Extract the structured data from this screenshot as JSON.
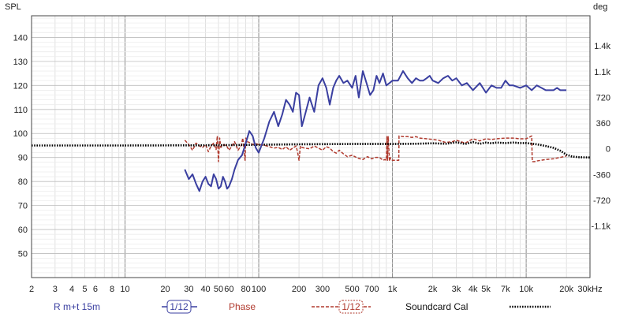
{
  "chart_data": {
    "type": "line",
    "y_left_label": "SPL",
    "y_right_label": "deg",
    "x_scale": "log",
    "x_range": [
      2,
      30000
    ],
    "y_left_range": [
      40,
      149
    ],
    "y_right_range": [
      -1800,
      1860
    ],
    "x_ticks": [
      {
        "v": 2,
        "label": "2"
      },
      {
        "v": 3,
        "label": "3"
      },
      {
        "v": 4,
        "label": "4"
      },
      {
        "v": 5,
        "label": "5"
      },
      {
        "v": 6,
        "label": "6"
      },
      {
        "v": 8,
        "label": "8"
      },
      {
        "v": 10,
        "label": "10"
      },
      {
        "v": 20,
        "label": "20"
      },
      {
        "v": 30,
        "label": "30"
      },
      {
        "v": 40,
        "label": "40"
      },
      {
        "v": 50,
        "label": "50"
      },
      {
        "v": 60,
        "label": "60"
      },
      {
        "v": 80,
        "label": "80"
      },
      {
        "v": 100,
        "label": "100"
      },
      {
        "v": 200,
        "label": "200"
      },
      {
        "v": 300,
        "label": "300"
      },
      {
        "v": 500,
        "label": "500"
      },
      {
        "v": 700,
        "label": "700"
      },
      {
        "v": 1000,
        "label": "1k"
      },
      {
        "v": 2000,
        "label": "2k"
      },
      {
        "v": 3000,
        "label": "3k"
      },
      {
        "v": 4000,
        "label": "4k"
      },
      {
        "v": 5000,
        "label": "5k"
      },
      {
        "v": 7000,
        "label": "7k"
      },
      {
        "v": 10000,
        "label": "10k"
      },
      {
        "v": 20000,
        "label": "20k"
      },
      {
        "v": 30000,
        "label": "30kHz"
      }
    ],
    "y_left_ticks": [
      {
        "v": 50,
        "label": "50"
      },
      {
        "v": 60,
        "label": "60"
      },
      {
        "v": 70,
        "label": "70"
      },
      {
        "v": 80,
        "label": "80"
      },
      {
        "v": 90,
        "label": "90"
      },
      {
        "v": 100,
        "label": "100"
      },
      {
        "v": 110,
        "label": "110"
      },
      {
        "v": 120,
        "label": "120"
      },
      {
        "v": 130,
        "label": "130"
      },
      {
        "v": 140,
        "label": "140"
      }
    ],
    "y_right_ticks": [
      {
        "v": -1080,
        "label": "-1.1k"
      },
      {
        "v": -720,
        "label": "-720"
      },
      {
        "v": -360,
        "label": "-360"
      },
      {
        "v": 0,
        "label": "0"
      },
      {
        "v": 360,
        "label": "360"
      },
      {
        "v": 720,
        "label": "720"
      },
      {
        "v": 1080,
        "label": "1.1k"
      },
      {
        "v": 1440,
        "label": "1.4k"
      }
    ],
    "series": [
      {
        "name": "R m+t 15m",
        "smoothing": "1/12",
        "axis": "left",
        "color": "#3a3fa0",
        "style": "solid",
        "x": [
          28,
          30,
          32,
          34,
          36,
          38,
          40,
          42,
          44,
          46,
          48,
          50,
          52,
          54,
          56,
          58,
          60,
          63,
          66,
          70,
          75,
          80,
          85,
          90,
          95,
          100,
          110,
          120,
          130,
          140,
          150,
          160,
          170,
          180,
          190,
          200,
          210,
          220,
          240,
          260,
          280,
          300,
          320,
          340,
          360,
          380,
          400,
          430,
          460,
          500,
          530,
          560,
          600,
          640,
          680,
          720,
          760,
          800,
          850,
          900,
          950,
          1000,
          1100,
          1200,
          1300,
          1400,
          1500,
          1600,
          1700,
          1800,
          1900,
          2000,
          2200,
          2400,
          2600,
          2800,
          3000,
          3300,
          3600,
          4000,
          4500,
          5000,
          5500,
          6000,
          6500,
          7000,
          7500,
          8000,
          9000,
          10000,
          11000,
          12000,
          13000,
          14000,
          15000,
          16000,
          17000,
          18000,
          19000,
          20000
        ],
        "y": [
          85,
          81,
          83,
          79,
          76,
          80,
          82,
          79,
          78,
          83,
          81,
          77,
          78,
          82,
          80,
          77,
          78,
          81,
          85,
          89,
          91,
          96,
          101,
          99,
          94,
          92,
          98,
          105,
          109,
          103,
          108,
          114,
          112,
          109,
          117,
          116,
          103,
          107,
          115,
          109,
          120,
          123,
          119,
          112,
          119,
          122,
          124,
          121,
          122,
          119,
          124,
          115,
          126,
          121,
          116,
          118,
          124,
          121,
          125,
          120,
          121,
          122,
          122,
          126,
          123,
          121,
          123,
          122,
          122,
          123,
          124,
          122,
          121,
          123,
          124,
          122,
          123,
          120,
          121,
          118,
          121,
          117,
          120,
          119,
          119,
          122,
          120,
          120,
          119,
          120,
          118,
          120,
          119,
          118,
          118,
          118,
          119,
          118,
          118,
          118
        ]
      },
      {
        "name": "Phase",
        "smoothing": "1/12",
        "axis": "right",
        "color": "#b03a2e",
        "style": "dashed",
        "x": [
          28,
          30,
          32,
          34,
          36,
          38,
          40,
          42,
          44,
          46,
          48,
          49,
          50,
          51,
          52,
          55,
          58,
          60,
          63,
          66,
          70,
          74,
          76,
          78,
          79,
          80,
          82,
          85,
          90,
          95,
          100,
          110,
          120,
          130,
          140,
          150,
          160,
          170,
          180,
          190,
          195,
          200,
          205,
          210,
          220,
          240,
          260,
          280,
          300,
          320,
          340,
          360,
          380,
          400,
          430,
          460,
          500,
          550,
          600,
          650,
          700,
          750,
          800,
          850,
          880,
          900,
          910,
          920,
          930,
          950,
          960,
          970,
          980,
          1000,
          1050,
          1100,
          1115,
          1120,
          1200,
          1300,
          1400,
          1500,
          1600,
          1800,
          2000,
          2200,
          2500,
          2800,
          3000,
          3500,
          4000,
          4500,
          5000,
          5500,
          6000,
          7000,
          8000,
          9000,
          10000,
          11000,
          11100,
          11500,
          12000,
          14000,
          16000,
          18000,
          20000
        ],
        "y": [
          120,
          60,
          -20,
          80,
          40,
          20,
          60,
          -40,
          40,
          80,
          -10,
          180,
          -180,
          150,
          20,
          60,
          30,
          -20,
          40,
          100,
          -20,
          50,
          150,
          -50,
          -160,
          150,
          100,
          90,
          60,
          70,
          60,
          50,
          30,
          10,
          20,
          -10,
          30,
          -20,
          10,
          40,
          -40,
          -160,
          40,
          20,
          10,
          0,
          40,
          10,
          -20,
          30,
          10,
          -40,
          -60,
          -20,
          -70,
          -110,
          -90,
          -130,
          -150,
          -110,
          -140,
          -120,
          -120,
          -160,
          -150,
          -160,
          170,
          -160,
          170,
          -160,
          -120,
          -150,
          -160,
          -160,
          -160,
          -160,
          -160,
          180,
          170,
          170,
          160,
          170,
          150,
          140,
          130,
          120,
          90,
          100,
          120,
          80,
          140,
          110,
          140,
          130,
          140,
          150,
          150,
          140,
          140,
          180,
          -180,
          -180,
          -170,
          -150,
          -140,
          -120,
          -100
        ]
      },
      {
        "name": "Soundcard Cal",
        "axis": "left",
        "color": "#000000",
        "style": "dotted",
        "x": [
          2,
          10,
          50,
          100,
          200,
          500,
          1000,
          1500,
          2000,
          2500,
          3000,
          3500,
          4000,
          4500,
          5000,
          5500,
          6000,
          7000,
          8000,
          9000,
          10000,
          12000,
          14000,
          16000,
          18000,
          20000,
          22000,
          25000,
          30000
        ],
        "y": [
          95,
          95,
          95.1,
          95.3,
          95.5,
          95.6,
          95.6,
          95.7,
          95.9,
          95.7,
          96.3,
          95.6,
          96.4,
          95.7,
          96.2,
          95.9,
          96.2,
          96.0,
          96.2,
          96.0,
          96.0,
          95.5,
          94.8,
          94.0,
          92.8,
          91.2,
          90.4,
          90.1,
          90.0
        ]
      }
    ],
    "legend": [
      {
        "label": "R m+t 15m",
        "smoothing": "1/12",
        "color": "#3a3fa0",
        "style": "solid"
      },
      {
        "label": "Phase",
        "smoothing": "1/12",
        "color": "#b03a2e",
        "style": "dashed"
      },
      {
        "label": "Soundcard Cal",
        "color": "#000000",
        "style": "dotted"
      }
    ],
    "legend_placement": "bottom",
    "grid": true
  }
}
